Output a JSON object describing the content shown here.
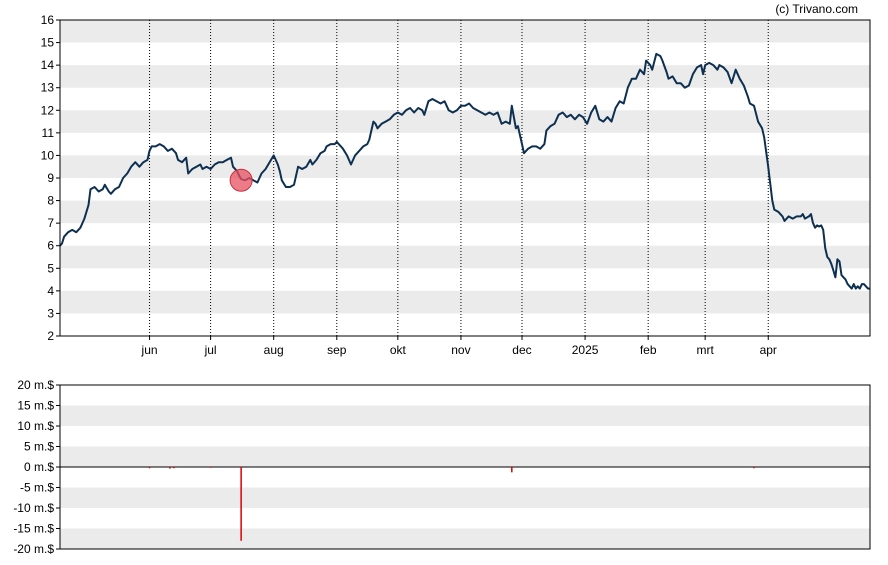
{
  "credit": "(c) Trivano.com",
  "colors": {
    "band": "#ebebeb",
    "line": "#0e3050",
    "marker": "#e85060",
    "bar": "#dd0000",
    "grid": "#000000"
  },
  "chart_data": [
    {
      "type": "line",
      "title": "",
      "xlabel": "",
      "ylabel": "",
      "ylim": [
        2,
        16
      ],
      "yticks": [
        2,
        3,
        4,
        5,
        6,
        7,
        8,
        9,
        10,
        11,
        12,
        13,
        14,
        15,
        16
      ],
      "grid": "horizontal alternating bands, vertical dotted month lines",
      "month_labels": [
        {
          "label": "jun",
          "day": 44
        },
        {
          "label": "jul",
          "day": 74
        },
        {
          "label": "aug",
          "day": 105
        },
        {
          "label": "sep",
          "day": 136
        },
        {
          "label": "okt",
          "day": 166
        },
        {
          "label": "nov",
          "day": 197
        },
        {
          "label": "dec",
          "day": 227
        },
        {
          "label": "2025",
          "day": 258
        },
        {
          "label": "feb",
          "day": 289
        },
        {
          "label": "mrt",
          "day": 317
        },
        {
          "label": "apr",
          "day": 348
        }
      ],
      "x_range_days": [
        0,
        378
      ],
      "series": [
        {
          "points": [
            [
              0,
              6.0
            ],
            [
              1,
              6.1
            ],
            [
              2,
              6.4
            ],
            [
              4,
              6.6
            ],
            [
              6,
              6.7
            ],
            [
              8,
              6.6
            ],
            [
              10,
              6.8
            ],
            [
              12,
              7.2
            ],
            [
              14,
              7.8
            ],
            [
              15,
              8.5
            ],
            [
              17,
              8.6
            ],
            [
              19,
              8.4
            ],
            [
              21,
              8.5
            ],
            [
              22,
              8.7
            ],
            [
              24,
              8.4
            ],
            [
              25,
              8.3
            ],
            [
              27,
              8.5
            ],
            [
              29,
              8.6
            ],
            [
              31,
              9.0
            ],
            [
              33,
              9.2
            ],
            [
              35,
              9.5
            ],
            [
              37,
              9.7
            ],
            [
              39,
              9.5
            ],
            [
              41,
              9.7
            ],
            [
              43,
              9.8
            ],
            [
              44,
              10.2
            ],
            [
              45,
              10.4
            ],
            [
              47,
              10.4
            ],
            [
              49,
              10.5
            ],
            [
              51,
              10.4
            ],
            [
              53,
              10.2
            ],
            [
              55,
              10.3
            ],
            [
              57,
              10.1
            ],
            [
              58,
              9.8
            ],
            [
              60,
              9.7
            ],
            [
              62,
              9.9
            ],
            [
              63,
              9.2
            ],
            [
              65,
              9.4
            ],
            [
              67,
              9.5
            ],
            [
              69,
              9.6
            ],
            [
              70,
              9.4
            ],
            [
              72,
              9.5
            ],
            [
              74,
              9.4
            ],
            [
              76,
              9.6
            ],
            [
              78,
              9.7
            ],
            [
              80,
              9.7
            ],
            [
              82,
              9.8
            ],
            [
              84,
              9.9
            ],
            [
              85,
              9.5
            ],
            [
              87,
              9.3
            ],
            [
              88,
              9.1
            ],
            [
              89,
              8.95
            ],
            [
              91,
              8.9
            ],
            [
              93,
              9.0
            ],
            [
              95,
              8.9
            ],
            [
              97,
              8.8
            ],
            [
              99,
              9.2
            ],
            [
              101,
              9.4
            ],
            [
              103,
              9.7
            ],
            [
              105,
              10.0
            ],
            [
              107,
              9.6
            ],
            [
              108,
              9.3
            ],
            [
              109,
              8.9
            ],
            [
              111,
              8.6
            ],
            [
              113,
              8.6
            ],
            [
              115,
              8.7
            ],
            [
              117,
              9.5
            ],
            [
              119,
              9.4
            ],
            [
              121,
              9.5
            ],
            [
              123,
              9.8
            ],
            [
              124,
              9.6
            ],
            [
              126,
              9.8
            ],
            [
              128,
              10.1
            ],
            [
              130,
              10.2
            ],
            [
              131,
              10.4
            ],
            [
              133,
              10.5
            ],
            [
              135,
              10.5
            ],
            [
              136,
              10.6
            ],
            [
              138,
              10.4
            ],
            [
              139,
              10.3
            ],
            [
              141,
              10.0
            ],
            [
              143,
              9.6
            ],
            [
              145,
              10.0
            ],
            [
              147,
              10.2
            ],
            [
              149,
              10.4
            ],
            [
              151,
              10.5
            ],
            [
              152,
              10.7
            ],
            [
              154,
              11.5
            ],
            [
              155,
              11.4
            ],
            [
              156,
              11.2
            ],
            [
              158,
              11.4
            ],
            [
              160,
              11.5
            ],
            [
              162,
              11.6
            ],
            [
              164,
              11.8
            ],
            [
              166,
              11.9
            ],
            [
              168,
              11.8
            ],
            [
              170,
              12.0
            ],
            [
              172,
              12.1
            ],
            [
              174,
              11.9
            ],
            [
              176,
              12.1
            ],
            [
              178,
              12.0
            ],
            [
              179,
              11.8
            ],
            [
              181,
              12.4
            ],
            [
              183,
              12.5
            ],
            [
              185,
              12.4
            ],
            [
              187,
              12.3
            ],
            [
              189,
              12.4
            ],
            [
              191,
              12.0
            ],
            [
              193,
              11.9
            ],
            [
              195,
              12.0
            ],
            [
              197,
              12.2
            ],
            [
              199,
              12.2
            ],
            [
              201,
              12.3
            ],
            [
              203,
              12.1
            ],
            [
              205,
              12.0
            ],
            [
              207,
              11.9
            ],
            [
              209,
              11.8
            ],
            [
              211,
              11.9
            ],
            [
              213,
              11.8
            ],
            [
              215,
              11.9
            ],
            [
              217,
              11.4
            ],
            [
              219,
              11.5
            ],
            [
              221,
              11.4
            ],
            [
              222,
              12.2
            ],
            [
              224,
              11.2
            ],
            [
              225,
              11.3
            ],
            [
              227,
              10.5
            ],
            [
              228,
              10.1
            ],
            [
              230,
              10.3
            ],
            [
              232,
              10.4
            ],
            [
              234,
              10.4
            ],
            [
              236,
              10.3
            ],
            [
              238,
              10.5
            ],
            [
              239,
              11.1
            ],
            [
              241,
              11.3
            ],
            [
              243,
              11.4
            ],
            [
              245,
              11.8
            ],
            [
              247,
              11.9
            ],
            [
              249,
              11.7
            ],
            [
              251,
              11.8
            ],
            [
              253,
              11.6
            ],
            [
              255,
              11.8
            ],
            [
              257,
              11.7
            ],
            [
              259,
              11.4
            ],
            [
              261,
              11.9
            ],
            [
              263,
              12.2
            ],
            [
              265,
              11.6
            ],
            [
              267,
              11.5
            ],
            [
              269,
              11.7
            ],
            [
              271,
              11.5
            ],
            [
              273,
              12.1
            ],
            [
              275,
              12.4
            ],
            [
              277,
              12.3
            ],
            [
              279,
              13.0
            ],
            [
              281,
              13.4
            ],
            [
              283,
              13.4
            ],
            [
              285,
              13.8
            ],
            [
              287,
              13.6
            ],
            [
              288,
              14.2
            ],
            [
              290,
              14.0
            ],
            [
              291,
              13.8
            ],
            [
              293,
              14.5
            ],
            [
              295,
              14.4
            ],
            [
              296,
              14.2
            ],
            [
              298,
              13.7
            ],
            [
              299,
              13.4
            ],
            [
              301,
              13.5
            ],
            [
              303,
              13.2
            ],
            [
              305,
              13.2
            ],
            [
              307,
              13.0
            ],
            [
              309,
              13.1
            ],
            [
              311,
              13.6
            ],
            [
              313,
              13.9
            ],
            [
              315,
              14.0
            ],
            [
              316,
              13.6
            ],
            [
              317,
              14.0
            ],
            [
              319,
              14.1
            ],
            [
              321,
              14.0
            ],
            [
              323,
              13.8
            ],
            [
              324,
              14.0
            ],
            [
              326,
              13.9
            ],
            [
              328,
              13.7
            ],
            [
              330,
              13.2
            ],
            [
              332,
              13.8
            ],
            [
              334,
              13.4
            ],
            [
              336,
              13.1
            ],
            [
              338,
              12.6
            ],
            [
              339,
              12.3
            ],
            [
              341,
              12.2
            ],
            [
              343,
              11.5
            ],
            [
              345,
              11.2
            ],
            [
              346,
              10.8
            ],
            [
              348,
              9.5
            ],
            [
              350,
              8.0
            ],
            [
              351,
              7.6
            ],
            [
              353,
              7.5
            ],
            [
              355,
              7.3
            ],
            [
              356,
              7.1
            ],
            [
              358,
              7.3
            ],
            [
              360,
              7.2
            ],
            [
              362,
              7.3
            ],
            [
              364,
              7.3
            ],
            [
              365,
              7.4
            ],
            [
              366,
              7.2
            ],
            [
              368,
              7.3
            ],
            [
              369,
              7.4
            ],
            [
              370,
              7.0
            ],
            [
              371,
              6.8
            ],
            [
              372,
              6.9
            ],
            [
              373,
              6.85
            ],
            [
              374,
              6.9
            ],
            [
              375,
              6.7
            ],
            [
              376,
              5.9
            ],
            [
              377,
              5.5
            ],
            [
              378,
              5.4
            ]
          ],
          "points_tail": [
            [
              379,
              5.2
            ],
            [
              380,
              4.9
            ],
            [
              381,
              4.6
            ],
            [
              382,
              5.4
            ],
            [
              383,
              5.3
            ],
            [
              384,
              4.7
            ],
            [
              385,
              4.6
            ],
            [
              386,
              4.5
            ],
            [
              387,
              4.3
            ],
            [
              388,
              4.2
            ],
            [
              389,
              4.1
            ],
            [
              390,
              4.3
            ],
            [
              391,
              4.1
            ],
            [
              392,
              4.2
            ],
            [
              393,
              4.1
            ],
            [
              394,
              4.3
            ],
            [
              395,
              4.3
            ],
            [
              396,
              4.2
            ],
            [
              397,
              4.1
            ],
            [
              398,
              4.1
            ]
          ]
        }
      ],
      "annotation_marker": {
        "day": 89,
        "value": 8.9
      }
    },
    {
      "type": "bar",
      "title": "",
      "ylim": [
        -20,
        20
      ],
      "yticks_labels": [
        "20 m.$",
        "15 m.$",
        "10 m.$",
        "5 m.$",
        "0 m.$",
        "-5 m.$",
        "-10 m.$",
        "-15 m.$",
        "-20 m.$"
      ],
      "ytick_values": [
        20,
        15,
        10,
        5,
        0,
        -5,
        -10,
        -15,
        -20
      ],
      "bars": [
        {
          "day": 44,
          "value": -0.3
        },
        {
          "day": 54,
          "value": -0.4
        },
        {
          "day": 56,
          "value": -0.3
        },
        {
          "day": 74,
          "value": -0.2
        },
        {
          "day": 89,
          "value": -18.0
        },
        {
          "day": 222,
          "value": -1.3
        },
        {
          "day": 341,
          "value": -0.3
        }
      ]
    }
  ]
}
